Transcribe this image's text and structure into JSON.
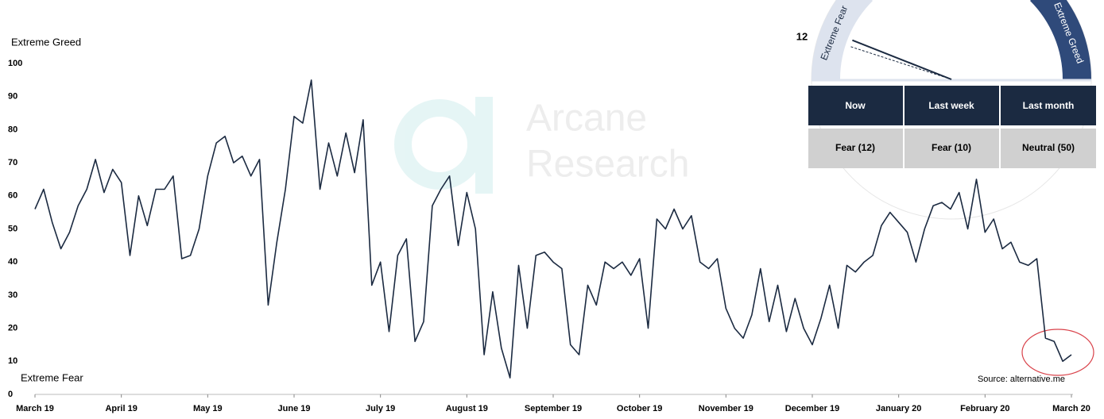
{
  "chart_data": {
    "type": "line",
    "y_top_label": "Extreme Greed",
    "y_bottom_label": "Extreme Fear",
    "source": "Source: alternative.me",
    "watermark": [
      "Arcane",
      "Research"
    ],
    "categories": [
      "March 19",
      null,
      null,
      null,
      null,
      null,
      null,
      null,
      null,
      null,
      "April 19",
      null,
      null,
      null,
      null,
      null,
      null,
      null,
      null,
      null,
      "May 19",
      null,
      null,
      null,
      null,
      null,
      null,
      null,
      null,
      null,
      "June 19",
      null,
      null,
      null,
      null,
      null,
      null,
      null,
      null,
      null,
      "July 19",
      null,
      null,
      null,
      null,
      null,
      null,
      null,
      null,
      null,
      "August 19",
      null,
      null,
      null,
      null,
      null,
      null,
      null,
      null,
      null,
      "September 19",
      null,
      null,
      null,
      null,
      null,
      null,
      null,
      null,
      null,
      "October 19",
      null,
      null,
      null,
      null,
      null,
      null,
      null,
      null,
      null,
      "November 19",
      null,
      null,
      null,
      null,
      null,
      null,
      null,
      null,
      null,
      "December 19",
      null,
      null,
      null,
      null,
      null,
      null,
      null,
      null,
      null,
      "January 20",
      null,
      null,
      null,
      null,
      null,
      null,
      null,
      null,
      null,
      "February 20",
      null,
      null,
      null,
      null,
      null,
      null,
      null,
      null,
      null,
      "March 20"
    ],
    "values": [
      56,
      62,
      52,
      44,
      49,
      57,
      62,
      71,
      61,
      68,
      64,
      42,
      60,
      51,
      62,
      62,
      66,
      41,
      42,
      50,
      66,
      76,
      78,
      70,
      72,
      66,
      71,
      27,
      46,
      62,
      84,
      82,
      95,
      62,
      76,
      66,
      79,
      67,
      83,
      33,
      40,
      19,
      42,
      47,
      16,
      22,
      57,
      62,
      66,
      45,
      61,
      50,
      12,
      31,
      14,
      5,
      39,
      20,
      42,
      43,
      40,
      38,
      15,
      12,
      33,
      27,
      40,
      38,
      40,
      36,
      41,
      20,
      53,
      50,
      56,
      50,
      54,
      40,
      38,
      41,
      26,
      20,
      17,
      24,
      38,
      22,
      33,
      19,
      29,
      20,
      15,
      23,
      33,
      20,
      39,
      37,
      40,
      42,
      51,
      55,
      52,
      49,
      40,
      50,
      57,
      58,
      56,
      61,
      50,
      65,
      49,
      53,
      44,
      46,
      40,
      39,
      41,
      17,
      16,
      10,
      12
    ],
    "color": "#1b2a41",
    "ylim": [
      0,
      100
    ],
    "yticks": [
      0,
      10,
      20,
      30,
      40,
      50,
      60,
      70,
      80,
      90,
      100
    ]
  },
  "gauge": {
    "value": 12,
    "value_label": "12",
    "last_week": 10,
    "fear_label": "Extreme Fear",
    "greed_label": "Extreme Greed"
  },
  "table": {
    "header": [
      "Now",
      "Last week",
      "Last month"
    ],
    "row": [
      "Fear (12)",
      "Fear (10)",
      "Neutral (50)"
    ]
  }
}
